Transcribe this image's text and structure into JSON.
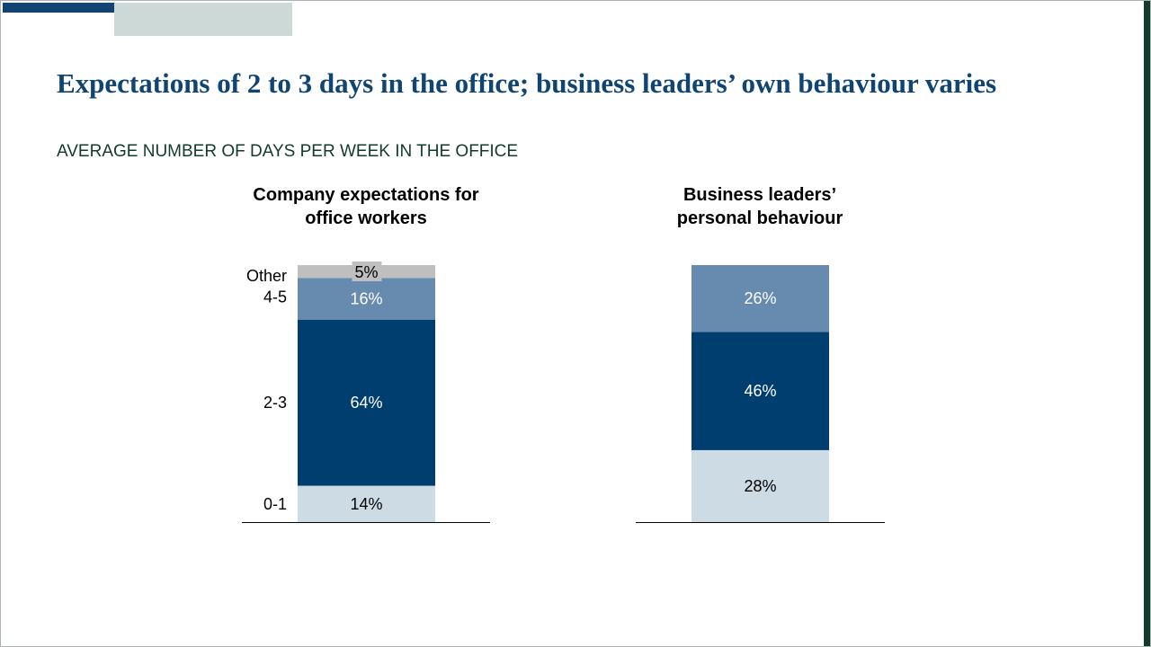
{
  "title": "Expectations of 2 to 3 days in the office; business leaders’ own behaviour varies",
  "subtitle": "AVERAGE NUMBER OF DAYS PER WEEK IN THE OFFICE",
  "colors": {
    "brand_dark": "#0f4473",
    "accent_green": "#123b2c",
    "seg_0_1": "#cddbe4",
    "seg_2_3": "#003e70",
    "seg_4_5": "#668bae",
    "seg_other": "#bfbfbf"
  },
  "chart_data": [
    {
      "type": "bar",
      "stacked": true,
      "title": "Company expectations for\noffice workers",
      "categories": [
        "Company expectations for office workers"
      ],
      "series": [
        {
          "name": "0-1",
          "values": [
            14
          ],
          "label": "14%"
        },
        {
          "name": "2-3",
          "values": [
            64
          ],
          "label": "64%"
        },
        {
          "name": "4-5",
          "values": [
            16
          ],
          "label": "16%"
        },
        {
          "name": "Other",
          "values": [
            5
          ],
          "label": "5%"
        }
      ],
      "ylim": [
        0,
        100
      ],
      "unit": "%",
      "grid": false,
      "legend": "left-side labels"
    },
    {
      "type": "bar",
      "stacked": true,
      "title": "Business leaders’\npersonal behaviour",
      "categories": [
        "Business leaders’ personal behaviour"
      ],
      "series": [
        {
          "values": [
            28
          ],
          "label": "28%"
        },
        {
          "values": [
            46
          ],
          "label": "46%"
        },
        {
          "values": [
            26
          ],
          "label": "26%"
        }
      ],
      "ylim": [
        0,
        100
      ],
      "unit": "%",
      "grid": false
    }
  ]
}
